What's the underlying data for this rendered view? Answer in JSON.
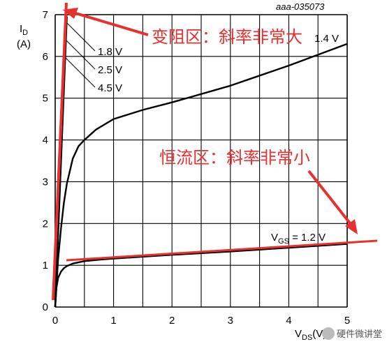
{
  "figure_code": "aaa-035073",
  "watermark": "硬件微讲堂",
  "annotations": {
    "variable_resistance": "变阻区：斜率非常大",
    "constant_current": "恒流区：斜率非常小"
  },
  "colors": {
    "curve": "#000000",
    "grid": "#000000",
    "annotation": "#e8312f"
  },
  "chart_data": {
    "type": "line",
    "ylabel_main": "I",
    "ylabel_sub": "D",
    "ylabel_unit": "(A)",
    "xlabel_main": "V",
    "xlabel_sub": "DS",
    "xlabel_unit": "(V)",
    "xlim": [
      0,
      5
    ],
    "ylim": [
      0,
      7
    ],
    "xticks": [
      "0",
      "1",
      "2",
      "3",
      "4",
      "5"
    ],
    "yticks": [
      "0",
      "1",
      "2",
      "3",
      "4",
      "5",
      "6",
      "7"
    ],
    "grid": true,
    "series": [
      {
        "name": "V_GS = 1.2 V",
        "label_main": "V",
        "label_sub": "GS",
        "label_rest": " = 1.2 V",
        "x": [
          0,
          0.02,
          0.05,
          0.1,
          0.15,
          0.2,
          0.3,
          0.5,
          0.8,
          1.0,
          2.0,
          3.0,
          4.0,
          5.0
        ],
        "y": [
          0,
          0.45,
          0.7,
          0.85,
          0.93,
          0.98,
          1.04,
          1.1,
          1.14,
          1.16,
          1.25,
          1.33,
          1.42,
          1.51
        ]
      },
      {
        "name": "1.4 V",
        "label": "1.4 V",
        "x": [
          0,
          0.05,
          0.1,
          0.15,
          0.2,
          0.3,
          0.4,
          0.5,
          0.7,
          1.0,
          1.5,
          2.0,
          3.0,
          4.0,
          5.0
        ],
        "y": [
          0,
          1.15,
          1.9,
          2.5,
          2.95,
          3.55,
          3.85,
          4.0,
          4.25,
          4.5,
          4.72,
          4.9,
          5.3,
          5.78,
          6.3
        ]
      },
      {
        "name": "1.8 V",
        "label": "1.8 V",
        "x": [
          0,
          0.2
        ],
        "y": [
          0,
          6.95
        ]
      },
      {
        "name": "2.5 V",
        "label": "2.5 V",
        "x": [
          0,
          0.195
        ],
        "y": [
          0,
          7.0
        ]
      },
      {
        "name": "4.5 V",
        "label": "4.5 V",
        "x": [
          0,
          0.19
        ],
        "y": [
          0,
          7.05
        ]
      }
    ]
  }
}
